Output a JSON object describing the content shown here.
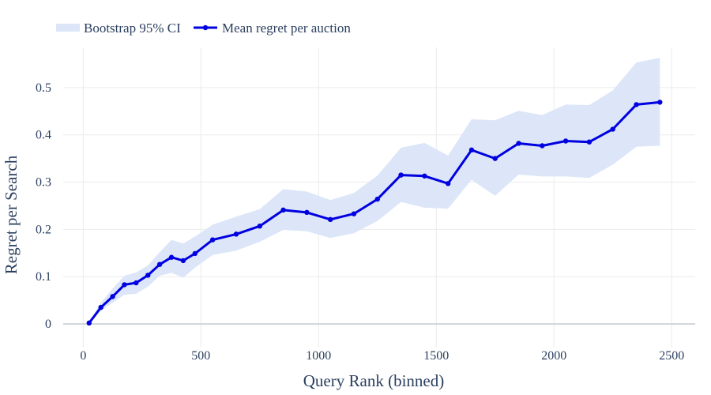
{
  "chart_data": {
    "type": "line",
    "xlabel": "Query Rank (binned)",
    "ylabel": "Regret per Search",
    "xlim": [
      -85,
      2600
    ],
    "ylim": [
      -0.05,
      0.585
    ],
    "x_ticks": [
      0,
      500,
      1000,
      1500,
      2000,
      2500
    ],
    "y_ticks": [
      0,
      0.1,
      0.2,
      0.3,
      0.4,
      0.5
    ],
    "grid": true,
    "legend_position": "top-left",
    "colors": {
      "line": "#0000e0",
      "band": "#dce6f8",
      "grid": "#ebebeb",
      "zeroline": "#d0d4da"
    },
    "series": [
      {
        "name": "Mean regret per auction",
        "x": [
          25,
          75,
          125,
          175,
          225,
          275,
          325,
          375,
          425,
          475,
          550,
          650,
          750,
          850,
          950,
          1050,
          1150,
          1250,
          1350,
          1450,
          1550,
          1650,
          1750,
          1850,
          1950,
          2050,
          2150,
          2250,
          2350,
          2450
        ],
        "y": [
          0.002,
          0.035,
          0.058,
          0.083,
          0.087,
          0.103,
          0.126,
          0.141,
          0.134,
          0.149,
          0.178,
          0.19,
          0.207,
          0.241,
          0.236,
          0.221,
          0.233,
          0.264,
          0.315,
          0.313,
          0.297,
          0.368,
          0.35,
          0.382,
          0.377,
          0.387,
          0.385,
          0.412,
          0.464,
          0.469
        ]
      }
    ],
    "band": {
      "name": "Bootstrap 95% CI",
      "x": [
        25,
        75,
        125,
        175,
        225,
        275,
        325,
        375,
        425,
        475,
        550,
        650,
        750,
        850,
        950,
        1050,
        1150,
        1250,
        1350,
        1450,
        1550,
        1650,
        1750,
        1850,
        1950,
        2050,
        2150,
        2250,
        2350,
        2450
      ],
      "upper": [
        0.004,
        0.045,
        0.075,
        0.102,
        0.109,
        0.124,
        0.152,
        0.178,
        0.17,
        0.185,
        0.21,
        0.227,
        0.243,
        0.285,
        0.28,
        0.262,
        0.277,
        0.314,
        0.373,
        0.383,
        0.356,
        0.433,
        0.431,
        0.451,
        0.442,
        0.464,
        0.463,
        0.494,
        0.553,
        0.563
      ],
      "lower": [
        0.001,
        0.028,
        0.045,
        0.062,
        0.064,
        0.079,
        0.102,
        0.108,
        0.098,
        0.119,
        0.146,
        0.155,
        0.174,
        0.199,
        0.196,
        0.182,
        0.192,
        0.218,
        0.258,
        0.246,
        0.244,
        0.305,
        0.271,
        0.316,
        0.312,
        0.312,
        0.309,
        0.337,
        0.375,
        0.377
      ]
    }
  }
}
